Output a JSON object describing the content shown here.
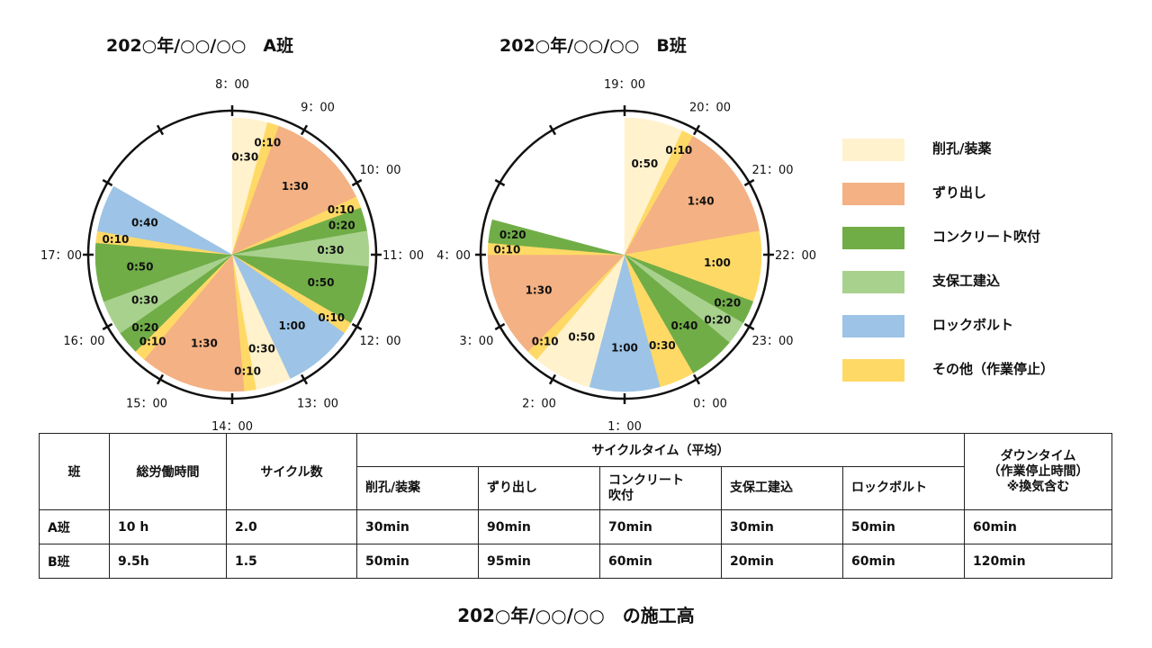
{
  "titles": {
    "a": "202○年/○○/○○　A班",
    "b": "202○年/○○/○○　B班",
    "footer": "202○年/○○/○○　の施工高"
  },
  "colors": {
    "drill": "#FFF2CC",
    "muck": "#F4B183",
    "shotcrete": "#70AD47",
    "support": "#A9D18E",
    "bolt": "#9DC3E6",
    "other": "#FFD966",
    "empty": "#FFFFFF"
  },
  "legend": [
    {
      "key": "drill",
      "label": "削孔/装薬"
    },
    {
      "key": "muck",
      "label": "ずり出し"
    },
    {
      "key": "shotcrete",
      "label": "コンクリート吹付"
    },
    {
      "key": "support",
      "label": "支保工建込"
    },
    {
      "key": "bolt",
      "label": "ロックボルト"
    },
    {
      "key": "other",
      "label": "その他（作業停止）"
    }
  ],
  "chart_data": [
    {
      "type": "pie",
      "title": "202○年/○○/○○　A班",
      "start_hour": 8,
      "hour_labels": [
        "8：00",
        "9：00",
        "10：00",
        "11：00",
        "12：00",
        "13：00",
        "14：00",
        "15：00",
        "16：00",
        "17：00"
      ],
      "segments": [
        {
          "cat": "drill",
          "minutes": 30,
          "label": "0:30"
        },
        {
          "cat": "other",
          "minutes": 10,
          "label": "0:10"
        },
        {
          "cat": "muck",
          "minutes": 90,
          "label": "1:30"
        },
        {
          "cat": "other",
          "minutes": 10,
          "label": "0:10"
        },
        {
          "cat": "shotcrete",
          "minutes": 20,
          "label": "0:20"
        },
        {
          "cat": "support",
          "minutes": 30,
          "label": "0:30"
        },
        {
          "cat": "shotcrete",
          "minutes": 50,
          "label": "0:50"
        },
        {
          "cat": "other",
          "minutes": 10,
          "label": "0:10"
        },
        {
          "cat": "bolt",
          "minutes": 60,
          "label": "1:00"
        },
        {
          "cat": "drill",
          "minutes": 30,
          "label": "0:30"
        },
        {
          "cat": "other",
          "minutes": 10,
          "label": "0:10"
        },
        {
          "cat": "muck",
          "minutes": 90,
          "label": "1:30"
        },
        {
          "cat": "other",
          "minutes": 10,
          "label": "0:10"
        },
        {
          "cat": "shotcrete",
          "minutes": 20,
          "label": "0:20"
        },
        {
          "cat": "support",
          "minutes": 30,
          "label": "0:30"
        },
        {
          "cat": "shotcrete",
          "minutes": 50,
          "label": "0:50"
        },
        {
          "cat": "other",
          "minutes": 10,
          "label": "0:10"
        },
        {
          "cat": "bolt",
          "minutes": 40,
          "label": "0:40"
        }
      ]
    },
    {
      "type": "pie",
      "title": "202○年/○○/○○　B班",
      "start_hour": 19,
      "hour_labels": [
        "19：00",
        "20：00",
        "21：00",
        "22：00",
        "23：00",
        "0：00",
        "1：00",
        "2：00",
        "3：00",
        "4：00"
      ],
      "segments": [
        {
          "cat": "drill",
          "minutes": 50,
          "label": "0:50"
        },
        {
          "cat": "other",
          "minutes": 10,
          "label": "0:10"
        },
        {
          "cat": "muck",
          "minutes": 100,
          "label": "1:40"
        },
        {
          "cat": "other",
          "minutes": 60,
          "label": "1:00"
        },
        {
          "cat": "shotcrete",
          "minutes": 20,
          "label": "0:20"
        },
        {
          "cat": "support",
          "minutes": 20,
          "label": "0:20"
        },
        {
          "cat": "shotcrete",
          "minutes": 40,
          "label": "0:40"
        },
        {
          "cat": "other",
          "minutes": 30,
          "label": "0:30"
        },
        {
          "cat": "bolt",
          "minutes": 60,
          "label": "1:00"
        },
        {
          "cat": "drill",
          "minutes": 50,
          "label": "0:50"
        },
        {
          "cat": "other",
          "minutes": 10,
          "label": "0:10"
        },
        {
          "cat": "muck",
          "minutes": 90,
          "label": "1:30"
        },
        {
          "cat": "other",
          "minutes": 10,
          "label": "0:10"
        },
        {
          "cat": "shotcrete",
          "minutes": 20,
          "label": "0:20"
        },
        {
          "cat": "empty",
          "minutes": 30,
          "label": ""
        }
      ]
    }
  ],
  "table": {
    "h_crew": "班",
    "h_total": "総労働時間",
    "h_cycles": "サイクル数",
    "h_cycle_time": "サイクルタイム（平均）",
    "h_downtime": "ダウンタイム\n（作業停止時間）\n※換気含む",
    "sub": [
      "削孔/装薬",
      "ずり出し",
      "コンクリート\n吹付",
      "支保工建込",
      "ロックボルト"
    ],
    "rows": [
      {
        "crew": "A班",
        "total": "10 h",
        "cycles": "2.0",
        "c1": "30min",
        "c2": "90min",
        "c3": "70min",
        "c4": "30min",
        "c5": "50min",
        "down": "60min"
      },
      {
        "crew": "B班",
        "total": "9.5h",
        "cycles": "1.5",
        "c1": "50min",
        "c2": "95min",
        "c3": "60min",
        "c4": "20min",
        "c5": "60min",
        "down": "120min"
      }
    ]
  }
}
